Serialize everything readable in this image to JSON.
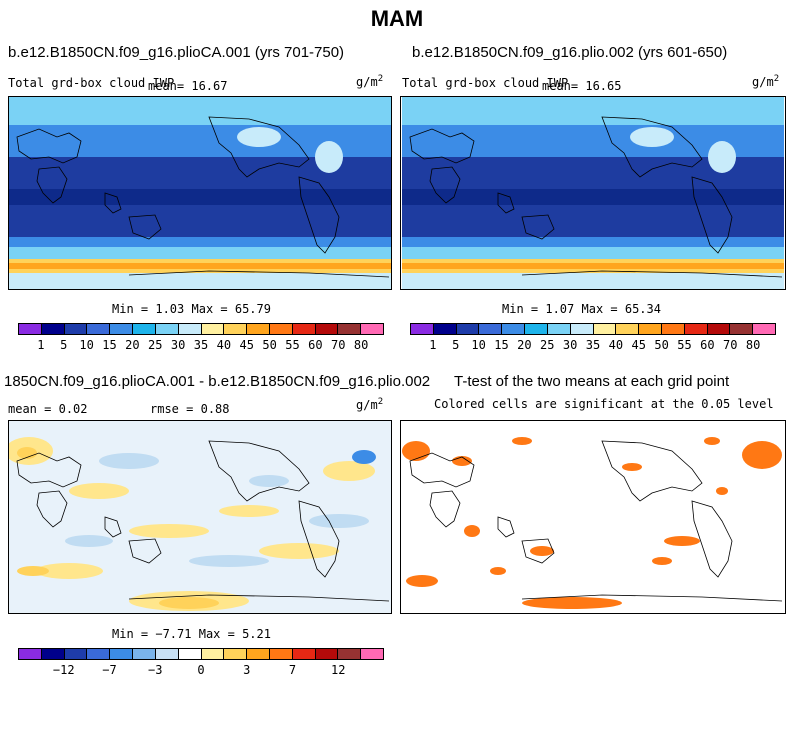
{
  "title": "MAM",
  "panels": {
    "top_left": {
      "case": "b.e12.B1850CN.f09_g16.plioCA.001 (yrs 701-750)",
      "variable": "Total grd-box cloud IWP",
      "mean_label": "mean=",
      "mean": "16.67",
      "units": "g/m",
      "units_sup": "2",
      "min_label": "Min =",
      "min": "1.03",
      "max_label": "Max =",
      "max": "65.79"
    },
    "top_right": {
      "case": "b.e12.B1850CN.f09_g16.plio.002 (yrs 601-650)",
      "variable": "Total grd-box cloud IWP",
      "mean_label": "mean=",
      "mean": "16.65",
      "units": "g/m",
      "units_sup": "2",
      "min_label": "Min =",
      "min": "1.07",
      "max_label": "Max =",
      "max": "65.34"
    },
    "bottom_left": {
      "case": "1850CN.f09_g16.plioCA.001 - b.e12.B1850CN.f09_g16.plio.002",
      "mean_label": "mean =",
      "mean": "0.02",
      "rmse_label": "rmse =",
      "rmse": "0.88",
      "units": "g/m",
      "units_sup": "2",
      "min_label": "Min =",
      "min": "−7.71",
      "max_label": "Max =",
      "max": "5.21"
    },
    "bottom_right": {
      "title": "T-test of the two means at each grid point",
      "subtitle": "Colored cells are significant at the 0.05 level"
    }
  },
  "colorbar_abs": {
    "labels": [
      "1",
      "5",
      "10",
      "15",
      "20",
      "25",
      "30",
      "35",
      "40",
      "45",
      "50",
      "55",
      "60",
      "70",
      "80"
    ],
    "colors": [
      "#8a2be2",
      "#00008b",
      "#1e3caa",
      "#3a6ad8",
      "#3c8ce6",
      "#1eb4eb",
      "#7ad2f5",
      "#c8ebfa",
      "#fff0a0",
      "#ffd25a",
      "#ffa51e",
      "#ff7814",
      "#e62814",
      "#b40a0a",
      "#963232",
      "#ff69b4"
    ]
  },
  "colorbar_diff": {
    "labels": [
      "−12",
      "−7",
      "−3",
      "0",
      "3",
      "7",
      "12"
    ],
    "label_positions": [
      2,
      4,
      6,
      8,
      10,
      12,
      14
    ],
    "colors": [
      "#8a2be2",
      "#00008b",
      "#1e3caa",
      "#3a6ad8",
      "#3c8ce6",
      "#7ab4eb",
      "#c8e1f5",
      "#ffffff",
      "#fff0a0",
      "#ffd25a",
      "#ffa51e",
      "#ff7814",
      "#e62814",
      "#b40a0a",
      "#963232",
      "#ff69b4"
    ]
  },
  "colors": {
    "significant": "#ff7814",
    "diff_pos": "#ffe68c",
    "diff_neg": "#c0dcf2",
    "ocean_tropical": "#1e3ca0",
    "ocean_mid": "#3c8ce6",
    "ocean_high": "#7ad2f5",
    "antarctic_band": "#ffa51e"
  }
}
